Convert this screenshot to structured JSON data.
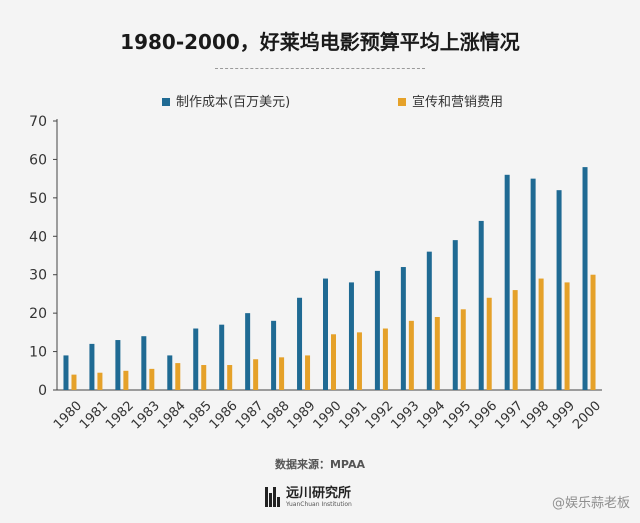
{
  "title": "1980-2000，好莱坞电影预算平均上涨情况",
  "source": "数据来源：MPAA",
  "logo": {
    "name": "远川研究所",
    "subtitle": "YuanChuan Institution"
  },
  "watermark": "@娱乐蒜老板",
  "colors": {
    "production": "#1f6a93",
    "marketing": "#e5a129",
    "axis": "#444444",
    "text": "#333333"
  },
  "chart_data": {
    "type": "bar",
    "title": "1980-2000，好莱坞电影预算平均上涨情况",
    "xlabel": "",
    "ylabel": "",
    "ylim": [
      0,
      70
    ],
    "yticks": [
      0,
      10,
      20,
      30,
      40,
      50,
      60,
      70
    ],
    "grid": false,
    "legend_position": "top",
    "categories": [
      "1980",
      "1981",
      "1982",
      "1983",
      "1984",
      "1985",
      "1986",
      "1987",
      "1988",
      "1989",
      "1990",
      "1991",
      "1992",
      "1993",
      "1994",
      "1995",
      "1996",
      "1997",
      "1998",
      "1999",
      "2000"
    ],
    "series": [
      {
        "name": "制作成本(百万美元)",
        "color": "#1f6a93",
        "values": [
          9,
          12,
          13,
          14,
          9,
          16,
          17,
          20,
          18,
          24,
          29,
          28,
          31,
          32,
          36,
          39,
          44,
          56,
          55,
          52,
          58
        ]
      },
      {
        "name": "宣传和营销费用",
        "color": "#e5a129",
        "values": [
          4,
          4.5,
          5,
          5.5,
          7,
          6.5,
          6.5,
          8,
          8.5,
          9,
          14.5,
          15,
          16,
          18,
          19,
          21,
          24,
          26,
          29,
          28,
          30
        ]
      }
    ]
  }
}
